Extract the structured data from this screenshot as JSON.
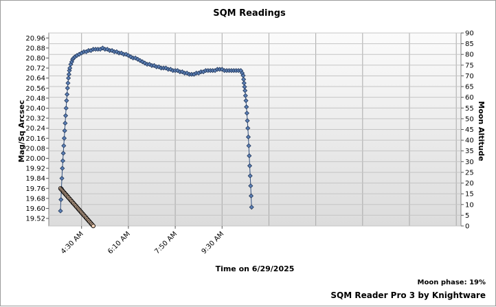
{
  "chart_data": {
    "type": "scatter",
    "title": "SQM Readings",
    "xlabel": "Time on 6/29/2025",
    "ylabel": "Mag/Sq Arcsec",
    "y2label": "Moon Altitude",
    "x_range_minutes": [
      200,
      1080
    ],
    "x_ticks": [
      {
        "label": "4:30 AM",
        "minute": 270
      },
      {
        "label": "6:10 AM",
        "minute": 370
      },
      {
        "label": "7:50 AM",
        "minute": 470
      },
      {
        "label": "9:30 AM",
        "minute": 570
      }
    ],
    "ylim": [
      19.46,
      21.0
    ],
    "y_ticks": [
      "20.96",
      "20.88",
      "20.80",
      "20.72",
      "20.64",
      "20.56",
      "20.48",
      "20.40",
      "20.32",
      "20.24",
      "20.16",
      "20.08",
      "20.00",
      "19.92",
      "19.84",
      "19.76",
      "19.68",
      "19.60",
      "19.52"
    ],
    "y2lim": [
      0,
      90
    ],
    "y2_ticks": [
      "90",
      "85",
      "80",
      "75",
      "70",
      "65",
      "60",
      "55",
      "50",
      "45",
      "40",
      "35",
      "30",
      "25",
      "20",
      "15",
      "10",
      "5",
      "0"
    ],
    "grid": true,
    "series": [
      {
        "kind": "sqm",
        "color": "#5b7fb5",
        "points": [
          [
            225,
            19.58
          ],
          [
            226,
            19.67
          ],
          [
            227,
            19.76
          ],
          [
            228,
            19.84
          ],
          [
            229,
            19.92
          ],
          [
            230,
            19.98
          ],
          [
            231,
            20.04
          ],
          [
            232,
            20.1
          ],
          [
            233,
            20.16
          ],
          [
            234,
            20.22
          ],
          [
            235,
            20.28
          ],
          [
            236,
            20.34
          ],
          [
            237,
            20.4
          ],
          [
            238,
            20.46
          ],
          [
            239,
            20.51
          ],
          [
            240,
            20.56
          ],
          [
            241,
            20.6
          ],
          [
            242,
            20.64
          ],
          [
            243,
            20.67
          ],
          [
            244,
            20.7
          ],
          [
            245,
            20.72
          ],
          [
            247,
            20.75
          ],
          [
            249,
            20.77
          ],
          [
            251,
            20.79
          ],
          [
            253,
            20.8
          ],
          [
            256,
            20.81
          ],
          [
            260,
            20.82
          ],
          [
            265,
            20.83
          ],
          [
            270,
            20.84
          ],
          [
            275,
            20.85
          ],
          [
            280,
            20.85
          ],
          [
            285,
            20.86
          ],
          [
            290,
            20.86
          ],
          [
            295,
            20.87
          ],
          [
            300,
            20.87
          ],
          [
            305,
            20.87
          ],
          [
            310,
            20.87
          ],
          [
            315,
            20.88
          ],
          [
            320,
            20.87
          ],
          [
            325,
            20.87
          ],
          [
            330,
            20.86
          ],
          [
            335,
            20.86
          ],
          [
            340,
            20.85
          ],
          [
            345,
            20.85
          ],
          [
            350,
            20.84
          ],
          [
            355,
            20.84
          ],
          [
            360,
            20.83
          ],
          [
            365,
            20.83
          ],
          [
            370,
            20.82
          ],
          [
            375,
            20.81
          ],
          [
            380,
            20.8
          ],
          [
            385,
            20.8
          ],
          [
            390,
            20.79
          ],
          [
            395,
            20.78
          ],
          [
            400,
            20.77
          ],
          [
            405,
            20.76
          ],
          [
            410,
            20.75
          ],
          [
            415,
            20.75
          ],
          [
            420,
            20.74
          ],
          [
            425,
            20.74
          ],
          [
            430,
            20.73
          ],
          [
            435,
            20.73
          ],
          [
            440,
            20.72
          ],
          [
            445,
            20.72
          ],
          [
            450,
            20.72
          ],
          [
            455,
            20.71
          ],
          [
            460,
            20.71
          ],
          [
            465,
            20.7
          ],
          [
            470,
            20.7
          ],
          [
            475,
            20.7
          ],
          [
            480,
            20.69
          ],
          [
            485,
            20.69
          ],
          [
            490,
            20.68
          ],
          [
            495,
            20.68
          ],
          [
            500,
            20.67
          ],
          [
            505,
            20.67
          ],
          [
            510,
            20.67
          ],
          [
            515,
            20.68
          ],
          [
            520,
            20.68
          ],
          [
            525,
            20.69
          ],
          [
            530,
            20.69
          ],
          [
            535,
            20.7
          ],
          [
            540,
            20.7
          ],
          [
            545,
            20.7
          ],
          [
            550,
            20.7
          ],
          [
            555,
            20.7
          ],
          [
            560,
            20.71
          ],
          [
            565,
            20.71
          ],
          [
            570,
            20.71
          ],
          [
            575,
            20.7
          ],
          [
            580,
            20.7
          ],
          [
            585,
            20.7
          ],
          [
            590,
            20.7
          ],
          [
            595,
            20.7
          ],
          [
            600,
            20.7
          ],
          [
            605,
            20.7
          ],
          [
            610,
            20.7
          ],
          [
            613,
            20.68
          ],
          [
            615,
            20.66
          ],
          [
            616,
            20.63
          ],
          [
            617,
            20.6
          ],
          [
            618,
            20.57
          ],
          [
            619,
            20.54
          ],
          [
            620,
            20.5
          ],
          [
            621,
            20.46
          ],
          [
            622,
            20.41
          ],
          [
            623,
            20.36
          ],
          [
            624,
            20.3
          ],
          [
            625,
            20.24
          ],
          [
            626,
            20.17
          ],
          [
            627,
            20.1
          ],
          [
            628,
            20.02
          ],
          [
            629,
            19.94
          ],
          [
            630,
            19.86
          ],
          [
            631,
            19.78
          ],
          [
            632,
            19.7
          ],
          [
            633,
            19.61
          ]
        ]
      },
      {
        "kind": "moon",
        "color": "#f3d0b4",
        "points": [
          [
            225,
            17.5
          ],
          [
            227,
            17.0
          ],
          [
            229,
            16.5
          ],
          [
            231,
            16.0
          ],
          [
            233,
            15.5
          ],
          [
            235,
            15.0
          ],
          [
            237,
            14.5
          ],
          [
            239,
            14.0
          ],
          [
            241,
            13.5
          ],
          [
            243,
            13.0
          ],
          [
            245,
            12.5
          ],
          [
            247,
            12.0
          ],
          [
            249,
            11.5
          ],
          [
            251,
            11.0
          ],
          [
            253,
            10.5
          ],
          [
            255,
            10.0
          ],
          [
            257,
            9.5
          ],
          [
            259,
            9.0
          ],
          [
            261,
            8.5
          ],
          [
            263,
            8.0
          ],
          [
            265,
            7.5
          ],
          [
            267,
            7.0
          ],
          [
            269,
            6.5
          ],
          [
            271,
            6.0
          ],
          [
            273,
            5.5
          ],
          [
            275,
            5.0
          ],
          [
            277,
            4.5
          ],
          [
            279,
            4.0
          ],
          [
            281,
            3.5
          ],
          [
            283,
            3.0
          ],
          [
            285,
            2.5
          ],
          [
            287,
            2.0
          ],
          [
            289,
            1.5
          ],
          [
            291,
            1.0
          ],
          [
            293,
            0.5
          ],
          [
            295,
            0.0
          ]
        ]
      }
    ]
  },
  "footer": {
    "moon_phase": "Moon phase: 19%",
    "credit": "SQM Reader Pro 3 by Knightware"
  }
}
